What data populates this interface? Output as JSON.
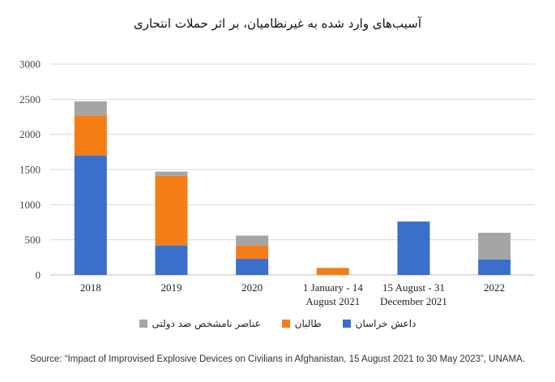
{
  "chart_data": {
    "type": "bar",
    "stacked": true,
    "title": "آسیب‌های وارد شده به غیرنظامیان، بر اثر حملات انتحاری",
    "categories": [
      "2018",
      "2019",
      "2020",
      "1 January - 14 August 2021",
      "15 August - 31 December 2021",
      "2022"
    ],
    "category_lines": [
      [
        "2018"
      ],
      [
        "2019"
      ],
      [
        "2020"
      ],
      [
        "1 January - 14",
        "August 2021"
      ],
      [
        "15 August - 31",
        "December 2021"
      ],
      [
        "2022"
      ]
    ],
    "series": [
      {
        "name": "داعش خراسان",
        "color": "#3b6fcc",
        "values": [
          1700,
          420,
          230,
          0,
          760,
          220
        ]
      },
      {
        "name": "طالبان",
        "color": "#f57d16",
        "values": [
          570,
          990,
          190,
          100,
          0,
          0
        ]
      },
      {
        "name": "عناصر نامشخص ضد دولتی",
        "color": "#a5a5a5",
        "values": [
          200,
          60,
          140,
          0,
          0,
          380
        ]
      }
    ],
    "ylim": [
      0,
      3000
    ],
    "yticks": [
      0,
      500,
      1000,
      1500,
      2000,
      2500,
      3000
    ],
    "grid": true,
    "legend": "bottom"
  },
  "source": "Source: “Impact of Improvised Explosive Devices on Civilians in Afghanistan, 15 August 2021 to 30 May 2023”, UNAMA."
}
